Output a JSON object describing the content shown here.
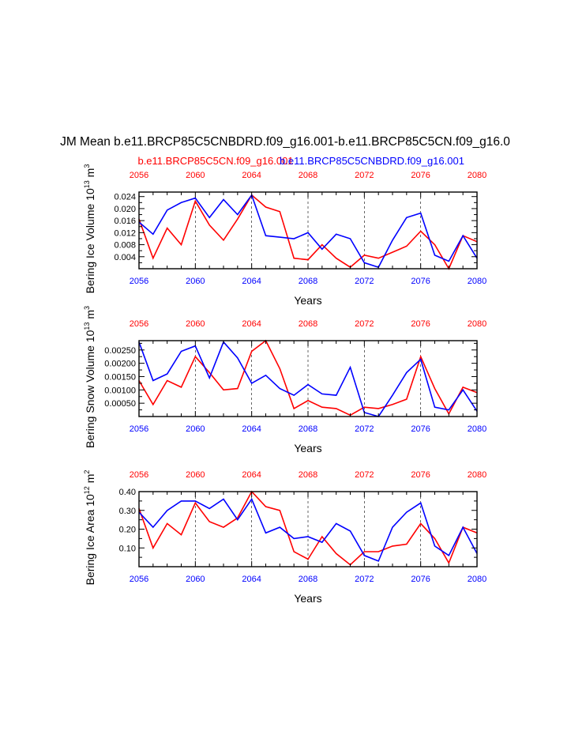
{
  "main_title": "JM Mean b.e11.BRCP85C5CNBDRD.f09_g16.001-b.e11.BRCP85C5CN.f09_g16.0",
  "legend": {
    "red_label": "b.e11.BRCP85C5CN.f09_g16.001",
    "blue_label": "b.e11.BRCP85C5CNBDRD.f09_g16.001"
  },
  "colors": {
    "red": "#ff0000",
    "blue": "#0000ff",
    "axis": "#000000",
    "grid": "#000000"
  },
  "chart_data": [
    {
      "type": "line",
      "ylabel": "Bering Ice Volume 10^13 m^3",
      "xlabel": "Years",
      "xlim": [
        2056,
        2080
      ],
      "ylim": [
        0.0,
        0.0255
      ],
      "xticks": [
        2056,
        2060,
        2064,
        2068,
        2072,
        2076,
        2080
      ],
      "yticks": [
        0.004,
        0.008,
        0.012,
        0.016,
        0.02,
        0.024
      ],
      "ytick_labels": [
        "0.004",
        "0.008",
        "0.012",
        "0.016",
        "0.020",
        "0.024"
      ],
      "x": [
        2056,
        2057,
        2058,
        2059,
        2060,
        2061,
        2062,
        2063,
        2064,
        2065,
        2066,
        2067,
        2068,
        2069,
        2070,
        2071,
        2072,
        2073,
        2074,
        2075,
        2076,
        2077,
        2078,
        2079,
        2080
      ],
      "series": [
        {
          "name": "b.e11.BRCP85C5CN.f09_g16.001",
          "color": "red",
          "values": [
            0.0165,
            0.0035,
            0.0135,
            0.008,
            0.0225,
            0.0145,
            0.0095,
            0.0165,
            0.0245,
            0.0205,
            0.019,
            0.0035,
            0.003,
            0.008,
            0.0035,
            0.0005,
            0.0045,
            0.0035,
            0.0055,
            0.0075,
            0.0125,
            0.008,
            0.0,
            0.011,
            0.009
          ]
        },
        {
          "name": "b.e11.BRCP85C5CNBDRD.f09_g16.001",
          "color": "blue",
          "values": [
            0.0155,
            0.0115,
            0.0195,
            0.022,
            0.0235,
            0.017,
            0.023,
            0.018,
            0.0245,
            0.011,
            0.0105,
            0.01,
            0.012,
            0.0065,
            0.0115,
            0.01,
            0.002,
            0.0005,
            0.0095,
            0.017,
            0.0185,
            0.0045,
            0.0025,
            0.011,
            0.0035
          ]
        }
      ]
    },
    {
      "type": "line",
      "ylabel": "Bering Snow Volume 10^13 m^3",
      "xlabel": "Years",
      "xlim": [
        2056,
        2080
      ],
      "ylim": [
        0.0,
        0.00285
      ],
      "xticks": [
        2056,
        2060,
        2064,
        2068,
        2072,
        2076,
        2080
      ],
      "yticks": [
        0.0005,
        0.001,
        0.0015,
        0.002,
        0.0025
      ],
      "ytick_labels": [
        "0.00050",
        "0.00100",
        "0.00150",
        "0.00200",
        "0.00250"
      ],
      "x": [
        2056,
        2057,
        2058,
        2059,
        2060,
        2061,
        2062,
        2063,
        2064,
        2065,
        2066,
        2067,
        2068,
        2069,
        2070,
        2071,
        2072,
        2073,
        2074,
        2075,
        2076,
        2077,
        2078,
        2079,
        2080
      ],
      "series": [
        {
          "name": "b.e11.BRCP85C5CN.f09_g16.001",
          "color": "red",
          "values": [
            0.00135,
            0.00045,
            0.00135,
            0.0011,
            0.00225,
            0.00165,
            0.001,
            0.00105,
            0.00245,
            0.00285,
            0.0018,
            0.0003,
            0.0006,
            0.00035,
            0.0003,
            5e-05,
            0.00035,
            0.0003,
            0.00045,
            0.00065,
            0.00225,
            0.00105,
            0.0001,
            0.0011,
            0.0009
          ]
        },
        {
          "name": "b.e11.BRCP85C5CNBDRD.f09_g16.001",
          "color": "blue",
          "values": [
            0.0028,
            0.00135,
            0.0016,
            0.00245,
            0.00265,
            0.00145,
            0.0028,
            0.0022,
            0.00125,
            0.00155,
            0.00105,
            0.0008,
            0.0012,
            0.00085,
            0.0008,
            0.00185,
            0.00015,
            0.0,
            0.0008,
            0.00165,
            0.00215,
            0.00035,
            0.00025,
            0.001,
            0.0002
          ]
        }
      ]
    },
    {
      "type": "line",
      "ylabel": "Bering Ice Area 10^12 m^2",
      "xlabel": "Years",
      "xlim": [
        2056,
        2080
      ],
      "ylim": [
        0.0,
        0.4
      ],
      "xticks": [
        2056,
        2060,
        2064,
        2068,
        2072,
        2076,
        2080
      ],
      "yticks": [
        0.1,
        0.2,
        0.3,
        0.4
      ],
      "ytick_labels": [
        "0.10",
        "0.20",
        "0.30",
        "0.40"
      ],
      "x": [
        2056,
        2057,
        2058,
        2059,
        2060,
        2061,
        2062,
        2063,
        2064,
        2065,
        2066,
        2067,
        2068,
        2069,
        2070,
        2071,
        2072,
        2073,
        2074,
        2075,
        2076,
        2077,
        2078,
        2079,
        2080
      ],
      "series": [
        {
          "name": "b.e11.BRCP85C5CN.f09_g16.001",
          "color": "red",
          "values": [
            0.31,
            0.1,
            0.23,
            0.17,
            0.34,
            0.24,
            0.21,
            0.26,
            0.4,
            0.32,
            0.3,
            0.08,
            0.04,
            0.16,
            0.07,
            0.01,
            0.08,
            0.08,
            0.11,
            0.12,
            0.23,
            0.15,
            0.02,
            0.21,
            0.18
          ]
        },
        {
          "name": "b.e11.BRCP85C5CNBDRD.f09_g16.001",
          "color": "blue",
          "values": [
            0.29,
            0.21,
            0.3,
            0.35,
            0.35,
            0.31,
            0.36,
            0.25,
            0.36,
            0.18,
            0.21,
            0.15,
            0.16,
            0.13,
            0.23,
            0.19,
            0.06,
            0.03,
            0.21,
            0.29,
            0.34,
            0.11,
            0.06,
            0.21,
            0.07
          ]
        }
      ]
    }
  ]
}
